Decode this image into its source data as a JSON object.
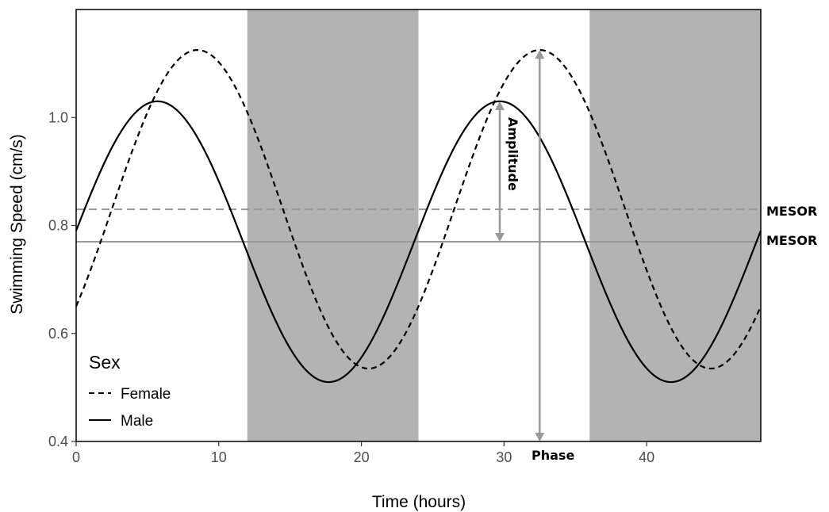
{
  "chart_data": {
    "type": "line",
    "xlabel": "Time (hours)",
    "ylabel": "Swimming Speed (cm/s)",
    "xlim": [
      0,
      48
    ],
    "ylim": [
      0.4,
      1.2
    ],
    "xticks": [
      0,
      10,
      20,
      30,
      40
    ],
    "yticks": [
      0.4,
      0.6,
      0.8,
      1.0
    ],
    "xtick_labels": [
      "0",
      "10",
      "20",
      "30",
      "40"
    ],
    "ytick_labels": [
      "0.4",
      "0.6",
      "0.8",
      "1.0"
    ],
    "grid": false,
    "dark_periods": [
      [
        12,
        24
      ],
      [
        36,
        48
      ]
    ],
    "legend": {
      "title": "Sex",
      "position": "bottom-left",
      "entries": [
        {
          "label": "Female",
          "style": "dashed"
        },
        {
          "label": "Male",
          "style": "solid"
        }
      ]
    },
    "series": [
      {
        "name": "Female",
        "style": "dashed",
        "mesor": 0.83,
        "amplitude": 0.295,
        "acrophase": 8.5,
        "period": 24,
        "x": [
          0,
          2,
          4,
          6,
          8.5,
          10,
          12,
          14,
          16,
          18,
          20.5,
          22,
          24,
          26,
          28,
          30,
          32.5,
          34,
          36,
          38,
          40,
          42,
          44.5,
          46,
          48
        ],
        "y": [
          0.655,
          0.709,
          0.895,
          1.026,
          1.125,
          1.1,
          1.033,
          0.887,
          0.719,
          0.589,
          0.535,
          0.569,
          0.655,
          0.709,
          0.895,
          1.026,
          1.125,
          1.1,
          1.033,
          0.887,
          0.719,
          0.589,
          0.535,
          0.569,
          0.655
        ]
      },
      {
        "name": "Male",
        "style": "solid",
        "mesor": 0.77,
        "amplitude": 0.26,
        "acrophase": 5.7,
        "period": 24,
        "x": [
          0,
          2,
          4,
          5.7,
          8,
          10,
          12,
          14,
          16,
          17.7,
          20,
          22,
          24,
          26,
          28,
          29.7,
          32,
          34,
          36,
          38,
          40,
          41.7,
          44,
          46,
          48
        ],
        "y": [
          0.79,
          0.922,
          1.012,
          1.03,
          0.98,
          0.88,
          0.75,
          0.622,
          0.533,
          0.51,
          0.56,
          0.66,
          0.79,
          0.922,
          1.012,
          1.03,
          0.98,
          0.88,
          0.75,
          0.622,
          0.533,
          0.51,
          0.56,
          0.66,
          0.79
        ]
      }
    ],
    "reference_lines": [
      {
        "series": "Female",
        "y": 0.83,
        "style": "dashed",
        "label": "MESOR"
      },
      {
        "series": "Male",
        "y": 0.77,
        "style": "solid",
        "label": "MESOR"
      }
    ],
    "annotations": [
      {
        "label": "Amplitude",
        "type": "double-arrow",
        "x": 29.7,
        "y_from": 0.77,
        "y_to": 1.03
      },
      {
        "label": "Phase",
        "type": "double-arrow",
        "x": 32.5,
        "y_from": 0.4,
        "y_to": 1.125
      }
    ],
    "colors": {
      "dark_band": "#b3b3b3",
      "lines": "#000000",
      "reference": "#999999",
      "arrows": "#999999"
    }
  }
}
